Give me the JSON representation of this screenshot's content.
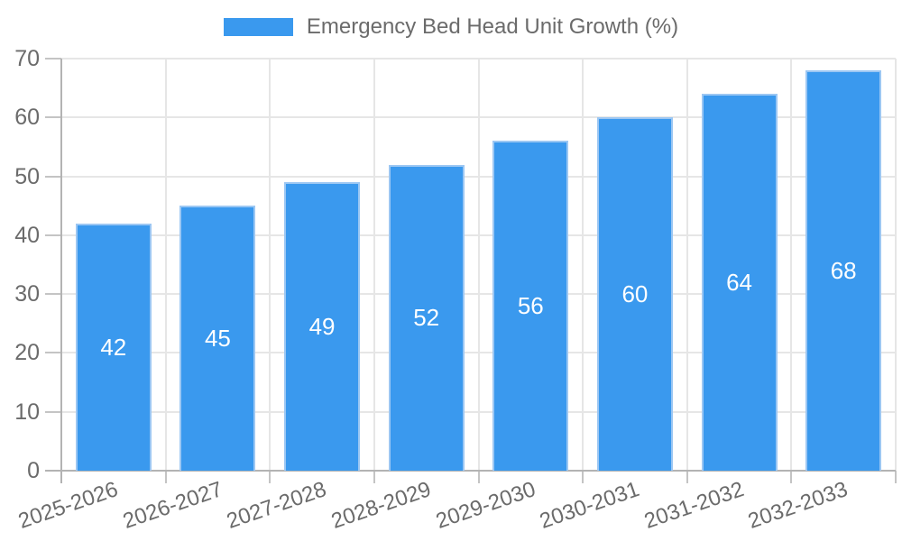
{
  "chart_data": {
    "type": "bar",
    "title": "Emergency Bed Head Unit Growth (%)",
    "categories": [
      "2025-2026",
      "2026-2027",
      "2027-2028",
      "2028-2029",
      "2029-2030",
      "2030-2031",
      "2031-2032",
      "2032-2033"
    ],
    "values": [
      42,
      45,
      49,
      52,
      56,
      60,
      64,
      68
    ],
    "xlabel": "",
    "ylabel": "",
    "ylim": [
      0,
      70
    ],
    "yticks": [
      0,
      10,
      20,
      30,
      40,
      50,
      60,
      70
    ],
    "grid": true,
    "legend_position": "top",
    "bar_labels_inside": true,
    "colors": {
      "bar_fill": "#3a99ee",
      "bar_border": "#9cc7f3",
      "bar_label_text": "#ffffff",
      "axis_text": "#6b6b6b",
      "grid_line": "#e6e6e6",
      "axis_line": "#b3b3b3",
      "tick_mark": "#c4c4c4",
      "background": "#ffffff"
    }
  }
}
